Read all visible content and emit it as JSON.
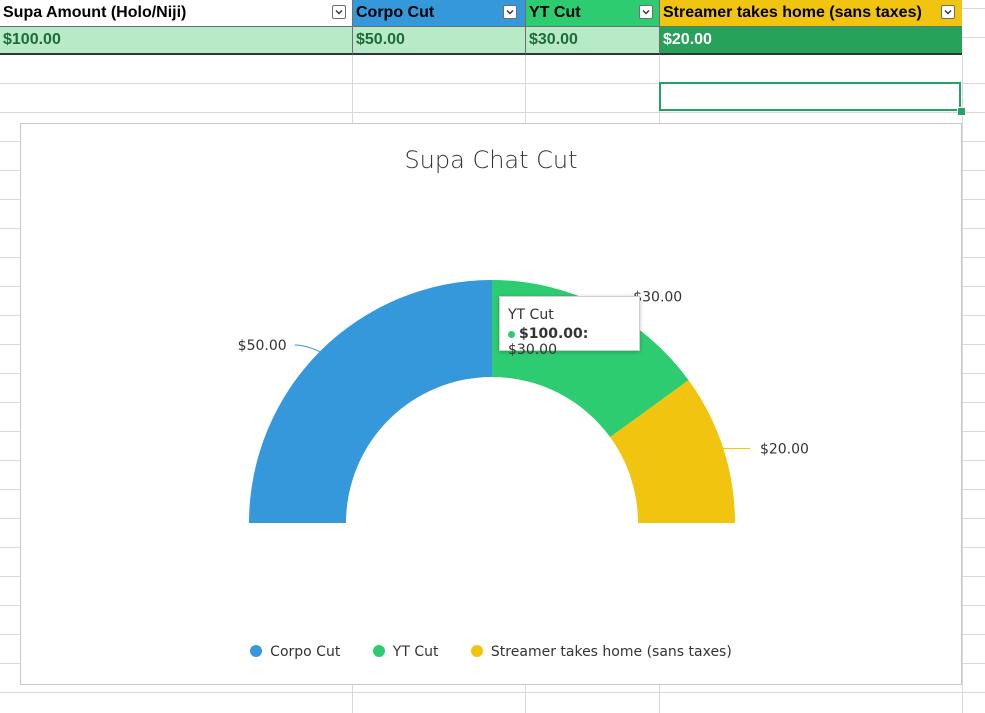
{
  "table": {
    "headers": [
      {
        "label": "Supa Amount (Holo/Niji)",
        "color": "#ffffff"
      },
      {
        "label": "Corpo Cut",
        "color": "#3498db"
      },
      {
        "label": "YT Cut",
        "color": "#2ecc71"
      },
      {
        "label": "Streamer takes home (sans taxes)",
        "color": "#f1c40f"
      }
    ],
    "row": [
      {
        "value": "$100.00",
        "color": "#b7ebc7"
      },
      {
        "value": "$50.00",
        "color": "#b7ebc7"
      },
      {
        "value": "$30.00",
        "color": "#b7ebc7"
      },
      {
        "value": "$20.00",
        "color": "#27a25a"
      }
    ]
  },
  "chart_data": {
    "type": "pie",
    "subtype": "half-donut",
    "title": "Supa Chat Cut",
    "category": "$100.00",
    "slices": [
      {
        "name": "Corpo Cut",
        "value": 50,
        "label": "$50.00",
        "color": "#3498db"
      },
      {
        "name": "YT Cut",
        "value": 30,
        "label": "$30.00",
        "color": "#2ecc71"
      },
      {
        "name": "Streamer takes home (sans taxes)",
        "value": 20,
        "label": "$20.00",
        "color": "#f1c40f"
      }
    ],
    "legend_position": "bottom",
    "tooltip": {
      "title": "YT Cut",
      "label": "$100.00:",
      "value": "$30.00"
    }
  }
}
